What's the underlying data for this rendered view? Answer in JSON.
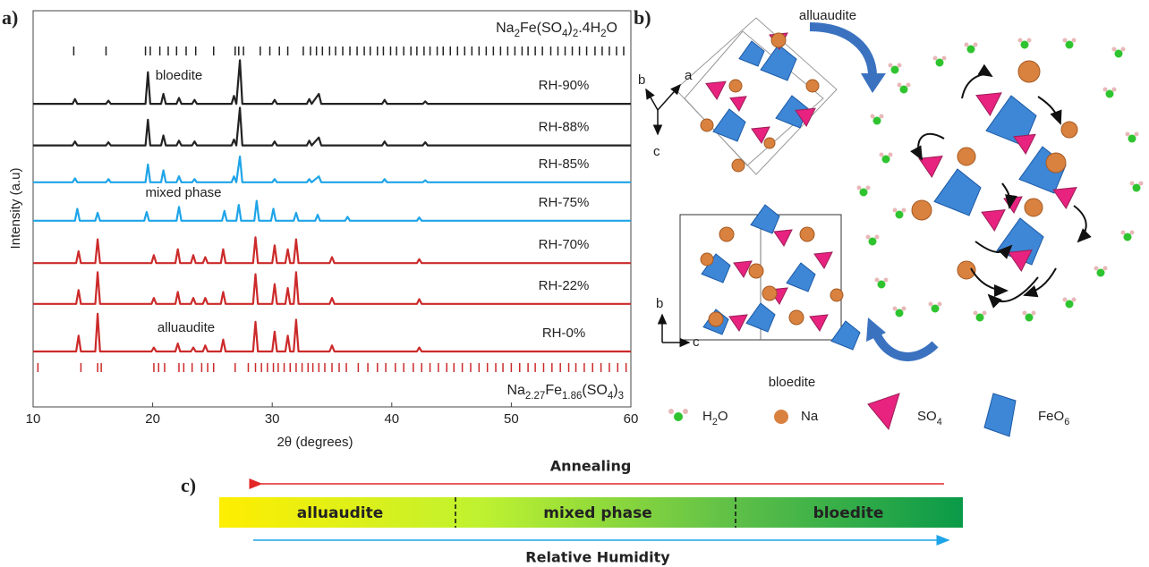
{
  "chart_data": {
    "type": "line",
    "panel_label": "a)",
    "x_label": "2θ (degrees)",
    "y_label": "Intensity (a.u)",
    "xlim": [
      10,
      60
    ],
    "xticks": [
      10,
      20,
      30,
      40,
      50,
      60
    ],
    "ylim": [
      0,
      100
    ],
    "annotations": [
      "bloedite",
      "mixed phase",
      "alluaudite"
    ],
    "reflections": [
      {
        "name": "Na2Fe(SO4)2.4H2O",
        "color": "#222222",
        "positions": [
          13.4,
          16.1,
          19.4,
          19.8,
          20.6,
          21.3,
          22.0,
          22.8,
          23.6,
          25.1,
          26.9,
          27.2,
          27.6,
          29.0,
          29.8,
          30.6,
          31.3,
          32.6,
          33.2,
          33.7,
          34.2,
          34.8,
          35.3,
          35.9,
          36.5,
          37.1,
          37.7,
          38.2,
          38.8,
          39.3,
          39.9,
          40.4,
          41.0,
          41.6,
          42.1,
          42.7,
          43.2,
          43.8,
          44.3,
          44.9,
          45.5,
          46.1,
          46.7,
          47.3,
          47.9,
          48.5,
          49.1,
          49.7,
          50.3,
          50.9,
          51.4,
          52.0,
          52.6,
          53.3,
          53.9,
          54.5,
          55.1,
          55.7,
          56.3,
          57.0,
          57.6,
          58.2,
          58.8,
          59.4
        ]
      },
      {
        "name": "Na2.27Fe1.86(SO4)3",
        "color": "#cc2a2a",
        "positions": [
          10.4,
          14.0,
          15.4,
          15.7,
          20.1,
          20.5,
          21.0,
          22.2,
          22.6,
          23.3,
          24.1,
          24.6,
          25.1,
          26.9,
          28.0,
          28.6,
          29.1,
          29.6,
          30.1,
          30.5,
          31.0,
          31.5,
          32.0,
          32.5,
          33.0,
          33.4,
          33.9,
          34.4,
          35.0,
          35.6,
          36.2,
          37.2,
          38.0,
          38.8,
          39.5,
          40.3,
          41.0,
          41.8,
          42.5,
          43.2,
          43.9,
          44.6,
          45.2,
          45.9,
          46.6,
          47.3,
          48.0,
          48.7,
          49.3,
          50.0,
          50.7,
          51.4,
          52.0,
          52.7,
          53.4,
          54.1,
          54.8,
          55.4,
          56.1,
          56.8,
          57.5,
          58.2,
          58.9,
          59.6
        ]
      }
    ],
    "series": [
      {
        "name": "RH-90%",
        "color": "#222222",
        "x": [
          10,
          13.3,
          13.5,
          13.7,
          16.1,
          16.3,
          16.5,
          19.4,
          19.6,
          19.8,
          20.7,
          20.9,
          21.1,
          22,
          22.2,
          22.4,
          23.3,
          23.5,
          23.7,
          26.6,
          26.8,
          27,
          27.3,
          27.5,
          30,
          30.2,
          30.4,
          32.9,
          33.1,
          33.3,
          33.9,
          34.1,
          39.2,
          39.4,
          39.6,
          42.6,
          42.8,
          43,
          60
        ],
        "values": [
          76.5,
          76.5,
          77.7,
          76.5,
          76.5,
          77.3,
          76.5,
          76.5,
          84.5,
          76.5,
          76.5,
          79,
          76.5,
          76.5,
          78,
          76.5,
          76.5,
          77.5,
          76.5,
          76.5,
          78.5,
          76.5,
          87.5,
          76.5,
          76.5,
          77.5,
          76.5,
          76.5,
          77.7,
          76.5,
          79,
          76.5,
          76.5,
          77.5,
          76.5,
          76.5,
          77.1,
          76.5,
          76.5
        ]
      },
      {
        "name": "RH-88%",
        "color": "#222222",
        "x": [
          10,
          13.3,
          13.5,
          13.7,
          16.1,
          16.3,
          16.5,
          19.4,
          19.6,
          19.8,
          20.7,
          20.9,
          21.1,
          22,
          22.2,
          22.4,
          23.3,
          23.5,
          23.7,
          26.6,
          26.8,
          27,
          27.3,
          27.5,
          30,
          30.2,
          30.4,
          32.9,
          33.1,
          33.3,
          33.9,
          34.1,
          39.2,
          39.4,
          39.6,
          42.6,
          42.8,
          43,
          60
        ],
        "values": [
          66,
          66,
          67,
          66,
          66,
          66.8,
          66,
          66,
          72.5,
          66,
          66,
          68.5,
          66,
          66,
          67.2,
          66,
          66,
          67,
          66,
          66,
          67.5,
          66,
          75.5,
          66,
          66,
          67,
          66,
          66,
          67.2,
          66,
          68,
          66,
          66,
          67,
          66,
          66,
          66.8,
          66,
          66
        ]
      },
      {
        "name": "RH-85%",
        "color": "#1ea4e8",
        "x": [
          10,
          13.3,
          13.5,
          13.7,
          16.1,
          16.3,
          16.5,
          19.4,
          19.6,
          19.8,
          20.7,
          20.9,
          21.1,
          22,
          22.2,
          22.4,
          23.3,
          23.5,
          23.7,
          26.6,
          26.8,
          27,
          27.3,
          27.5,
          30,
          30.2,
          30.4,
          32.9,
          33.1,
          33.3,
          33.9,
          34.1,
          39.2,
          39.4,
          39.6,
          42.6,
          42.8,
          43,
          60
        ],
        "values": [
          56.7,
          56.7,
          57.7,
          56.7,
          56.7,
          57.5,
          56.7,
          56.7,
          61.2,
          56.7,
          56.7,
          59.7,
          56.7,
          56.7,
          58.2,
          56.7,
          56.7,
          57.5,
          56.7,
          56.7,
          58.2,
          56.7,
          63.2,
          56.7,
          56.7,
          57.5,
          56.7,
          56.7,
          57.5,
          56.7,
          58.2,
          56.7,
          56.7,
          57.5,
          56.7,
          56.7,
          57.2,
          56.7,
          56.7
        ]
      },
      {
        "name": "RH-75%",
        "color": "#1ea4e8",
        "x": [
          10,
          13.5,
          13.7,
          13.9,
          15.2,
          15.4,
          15.6,
          19.3,
          19.5,
          19.7,
          22,
          22.2,
          22.4,
          25.8,
          26,
          26.2,
          27,
          27.2,
          27.4,
          28.5,
          28.7,
          28.9,
          29.9,
          30.1,
          30.3,
          31.8,
          32,
          32.2,
          33.6,
          33.8,
          34,
          36.1,
          36.3,
          36.5,
          42.1,
          42.3,
          42.5,
          60
        ],
        "values": [
          47,
          47,
          50,
          47,
          47,
          49,
          47,
          47,
          49.2,
          47,
          47,
          50.5,
          47,
          47,
          49.5,
          47,
          47,
          51,
          47,
          47,
          52,
          47,
          47,
          50,
          47,
          47,
          49,
          47,
          47,
          48.5,
          47,
          47,
          48,
          47,
          47,
          47.8,
          47,
          47
        ]
      },
      {
        "name": "RH-70%",
        "color": "#cc2a2a",
        "x": [
          10,
          13.6,
          13.8,
          14,
          15.2,
          15.4,
          15.6,
          19.9,
          20.1,
          20.3,
          21.9,
          22.1,
          22.3,
          23.2,
          23.4,
          23.6,
          24.2,
          24.4,
          24.6,
          25.7,
          25.9,
          26.1,
          28.4,
          28.6,
          28.8,
          30,
          30.2,
          30.4,
          31.1,
          31.3,
          31.5,
          31.8,
          32,
          32.2,
          34.8,
          35,
          35.2,
          42.1,
          42.3,
          42.5,
          60
        ],
        "values": [
          36.3,
          36.3,
          39.3,
          36.3,
          36.3,
          42.3,
          36.3,
          36.3,
          38.3,
          36.3,
          36.3,
          39.8,
          36.3,
          36.3,
          38.3,
          36.3,
          36.3,
          37.8,
          36.3,
          36.3,
          39.8,
          36.3,
          36.3,
          42.8,
          36.3,
          36.3,
          40.8,
          36.3,
          36.3,
          39.8,
          36.3,
          36.3,
          42.3,
          36.3,
          36.3,
          37.8,
          36.3,
          36.3,
          37.3,
          36.3,
          36.3
        ]
      },
      {
        "name": "RH-22%",
        "color": "#cc2a2a",
        "x": [
          10,
          13.6,
          13.8,
          14,
          15.2,
          15.4,
          15.6,
          19.9,
          20.1,
          20.3,
          21.9,
          22.1,
          22.3,
          23.2,
          23.4,
          23.6,
          24.2,
          24.4,
          24.6,
          25.7,
          25.9,
          26.1,
          28.4,
          28.6,
          28.8,
          30,
          30.2,
          30.4,
          31.1,
          31.3,
          31.5,
          31.8,
          32,
          32.2,
          34.8,
          35,
          35.2,
          42.1,
          42.3,
          42.5,
          60
        ],
        "values": [
          26,
          26,
          29.5,
          26,
          26,
          34,
          26,
          26,
          27.5,
          26,
          26,
          29,
          26,
          26,
          27.5,
          26,
          26,
          27.5,
          26,
          26,
          29,
          26,
          26,
          33.5,
          26,
          26,
          31,
          26,
          26,
          30,
          26,
          26,
          34,
          26,
          26,
          27.5,
          26,
          26,
          27.2,
          26,
          26
        ]
      },
      {
        "name": "RH-0%",
        "color": "#cc2a2a",
        "x": [
          10,
          13.6,
          13.8,
          14,
          15.2,
          15.4,
          15.6,
          19.9,
          20.1,
          20.3,
          21.9,
          22.1,
          22.3,
          23.2,
          23.4,
          23.6,
          24.2,
          24.4,
          24.6,
          25.7,
          25.9,
          26.1,
          28.4,
          28.6,
          28.8,
          30,
          30.2,
          30.4,
          31.1,
          31.3,
          31.5,
          31.8,
          32,
          32.2,
          34.8,
          35,
          35.2,
          42.1,
          42.3,
          42.5,
          60
        ],
        "values": [
          14,
          14,
          18,
          14,
          14,
          23.5,
          14,
          14,
          15,
          14,
          14,
          16,
          14,
          14,
          15,
          14,
          14,
          15.5,
          14,
          14,
          17,
          14,
          14,
          21.5,
          14,
          14,
          19,
          14,
          14,
          18,
          14,
          14,
          22,
          14,
          14,
          15.5,
          14,
          14,
          15,
          14,
          14
        ]
      }
    ]
  },
  "structure": {
    "panel_label": "b)",
    "top_label": "alluaudite",
    "bottom_label": "bloedite",
    "axes_top": [
      "b",
      "a",
      "c"
    ],
    "axes_bottom": [
      "b",
      "c"
    ],
    "legend": [
      "H2O",
      "Na",
      "SO4",
      "FeO6"
    ]
  },
  "phase_bar": {
    "panel_label": "c)",
    "top_arrow": "Annealing",
    "bottom_arrow": "Relative Humidity",
    "phases": [
      "alluaudite",
      "mixed phase",
      "bloedite"
    ]
  }
}
